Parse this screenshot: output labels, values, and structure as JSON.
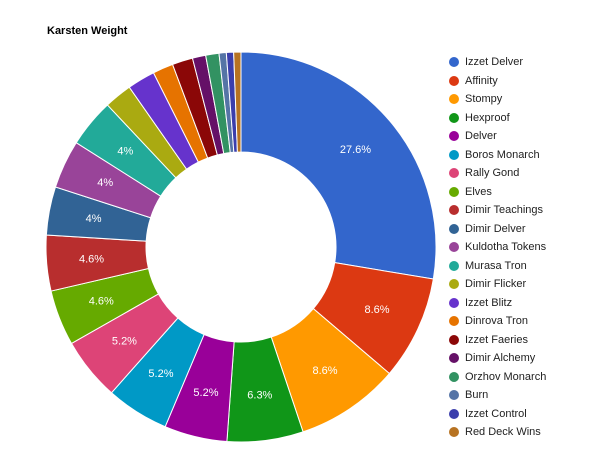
{
  "chart_data": {
    "type": "pie",
    "title": "Karsten Weight",
    "donut": true,
    "legend_position": "right",
    "categories": [
      "Izzet Delver",
      "Affinity",
      "Stompy",
      "Hexproof",
      "Delver",
      "Boros Monarch",
      "Rally Gond",
      "Elves",
      "Dimir Teachings",
      "Dimir Delver",
      "Kuldotha Tokens",
      "Murasa Tron",
      "Dimir Flicker",
      "Izzet Blitz",
      "Dinrova Tron",
      "Izzet Faeries",
      "Dimir Alchemy",
      "Orzhov Monarch",
      "Burn",
      "Izzet Control",
      "Red Deck Wins"
    ],
    "values": [
      27.6,
      8.6,
      8.6,
      6.3,
      5.2,
      5.2,
      5.2,
      4.6,
      4.6,
      4,
      4,
      4,
      2.3,
      2.3,
      1.7,
      1.7,
      1.1,
      1.1,
      0.6,
      0.6,
      0.6
    ],
    "data_labels": [
      "27.6%",
      "8.6%",
      "8.6%",
      "6.3%",
      "5.2%",
      "5.2%",
      "5.2%",
      "4.6%",
      "4.6%",
      "4%",
      "4%",
      "4%",
      "",
      "",
      "",
      "",
      "",
      "",
      "",
      "",
      ""
    ],
    "colors": [
      "#3366cc",
      "#dc3912",
      "#ff9900",
      "#109618",
      "#990099",
      "#0099c6",
      "#dd4477",
      "#66aa00",
      "#b82e2e",
      "#316395",
      "#994499",
      "#22aa99",
      "#aaaa11",
      "#6633cc",
      "#e67300",
      "#8b0707",
      "#651067",
      "#329262",
      "#5574a6",
      "#3b3eac",
      "#b77322"
    ]
  }
}
